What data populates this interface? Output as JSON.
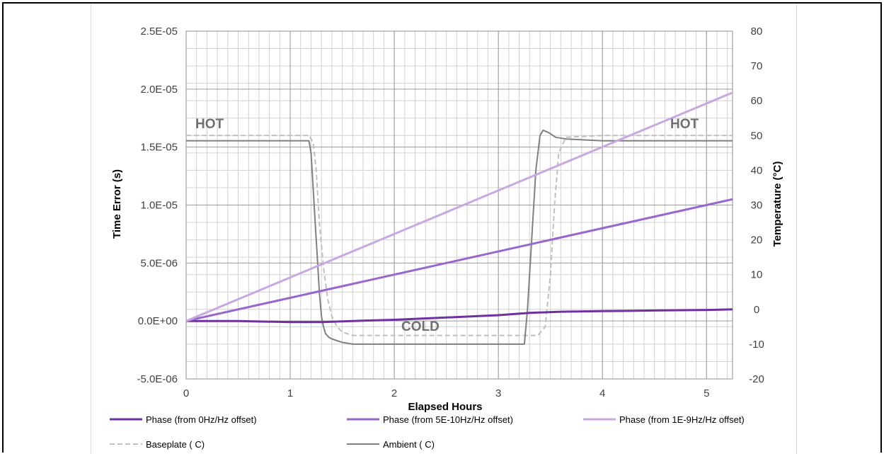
{
  "chart_data": {
    "type": "line",
    "xlabel": "Elapsed Hours",
    "ylabel": "Time Error (s)",
    "y2label": "Temperature (°C)",
    "xlim": [
      0,
      5.25
    ],
    "ylim": [
      -5e-06,
      2.5e-05
    ],
    "y2lim": [
      -20,
      80
    ],
    "x_ticks": [
      "0",
      "1",
      "2",
      "3",
      "4",
      "5"
    ],
    "x_tick_values": [
      0,
      1,
      2,
      3,
      4,
      5
    ],
    "y_ticks": [
      "2.5E-05",
      "2.0E-05",
      "1.5E-05",
      "1.0E-05",
      "5.0E-06",
      "0.0E+00",
      "-5.0E-06"
    ],
    "y_tick_values": [
      2.5e-05,
      2e-05,
      1.5e-05,
      1e-05,
      5e-06,
      0,
      -5e-06
    ],
    "y2_ticks": [
      "80",
      "70",
      "60",
      "50",
      "40",
      "30",
      "20",
      "10",
      "0",
      "-10",
      "-20"
    ],
    "y2_tick_values": [
      80,
      70,
      60,
      50,
      40,
      30,
      20,
      10,
      0,
      -10,
      -20
    ],
    "grid": true,
    "legend_position": "bottom",
    "series": [
      {
        "name": "Phase (from 0Hz/Hz offset)",
        "axis": "left",
        "color": "#7030a0",
        "style": "solid",
        "x": [
          0,
          0.5,
          1.0,
          1.3,
          1.6,
          2.0,
          2.5,
          3.0,
          3.3,
          3.6,
          4.0,
          4.5,
          5.0,
          5.25
        ],
        "y": [
          0,
          0,
          -1e-07,
          -1e-07,
          0,
          1e-07,
          3e-07,
          5e-07,
          7e-07,
          8e-07,
          8.5e-07,
          9e-07,
          9.5e-07,
          1e-06
        ]
      },
      {
        "name": "Phase (from 5E-10Hz/Hz offset)",
        "axis": "left",
        "color": "#9966cc",
        "style": "solid",
        "x": [
          0,
          5.25
        ],
        "y": [
          0,
          1.05e-05
        ]
      },
      {
        "name": "Phase (from 1E-9Hz/Hz offset)",
        "axis": "left",
        "color": "#c9a8e2",
        "style": "solid",
        "x": [
          0,
          5.25
        ],
        "y": [
          0,
          1.97e-05
        ]
      },
      {
        "name": "Baseplate ( C)",
        "axis": "right",
        "color": "#bfbfbf",
        "style": "dashed",
        "x": [
          0,
          1.18,
          1.22,
          1.25,
          1.28,
          1.32,
          1.36,
          1.4,
          1.45,
          1.5,
          1.6,
          1.8,
          2.5,
          3.0,
          3.38,
          3.45,
          3.5,
          3.54,
          3.58,
          3.65,
          4.0,
          5.25
        ],
        "y": [
          50,
          50,
          48,
          40,
          25,
          12,
          3,
          -2,
          -5,
          -6.5,
          -7.5,
          -7.5,
          -7.5,
          -7.5,
          -7.5,
          -5,
          10,
          30,
          45,
          49.5,
          50,
          50
        ]
      },
      {
        "name": "Ambient ( C)",
        "axis": "right",
        "color": "#808080",
        "style": "solid",
        "x": [
          0,
          1.18,
          1.2,
          1.22,
          1.24,
          1.26,
          1.28,
          1.3,
          1.32,
          1.34,
          1.37,
          1.4,
          1.45,
          1.5,
          1.6,
          1.8,
          2.5,
          3.0,
          3.25,
          3.28,
          3.32,
          3.36,
          3.4,
          3.43,
          3.47,
          3.5,
          3.55,
          3.65,
          4.0,
          5.25
        ],
        "y": [
          48.5,
          48.5,
          45,
          35,
          25,
          15,
          5,
          -2,
          -5,
          -7,
          -8,
          -8.5,
          -9,
          -9.5,
          -10,
          -10,
          -10,
          -10,
          -10,
          0,
          20,
          40,
          50,
          51.5,
          51,
          50.5,
          49.5,
          49,
          48.5,
          48.5
        ]
      }
    ],
    "annotations": [
      "HOT",
      "COLD",
      "HOT"
    ]
  }
}
